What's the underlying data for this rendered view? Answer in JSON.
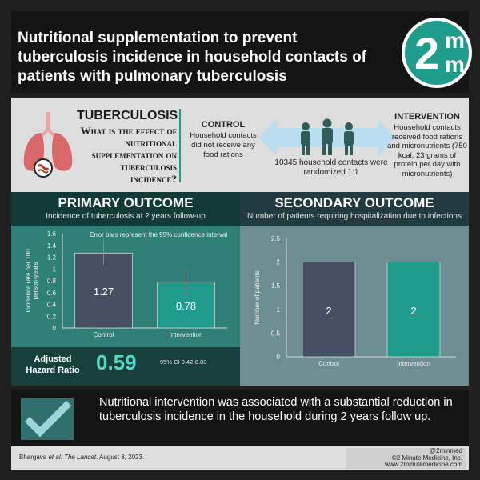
{
  "header": {
    "title": "Nutritional supplementation to prevent tuberculosis incidence in household contacts of patients with pulmonary tuberculosis",
    "logo": {
      "big": "2",
      "sm1": "m",
      "sm2": "m"
    }
  },
  "info": {
    "question_heading": "TUBERCULOSIS:",
    "question_body": "What is the effect of nutritional supplementation on tuberculosis incidence?",
    "control": {
      "heading": "CONTROL",
      "text": "Household contacts did not receive any food rations"
    },
    "randomized": "10345 household contacts were randomized 1:1",
    "intervention": {
      "heading": "INTERVENTION",
      "text": "Household contacts received food rations and micronutrients (750 kcal, 23 grams of protein per day with micronutrients)"
    }
  },
  "primary": {
    "title": "PRIMARY OUTCOME",
    "subtitle": "Incidence of tuberculosis at 2 years follow-up",
    "hr_label": "Adjusted Hazard Ratio",
    "hr_value": "0.59",
    "hr_ci": "95% CI 0.42-0.83"
  },
  "secondary": {
    "title": "SECONDARY OUTCOME",
    "subtitle": "Number of patients requiring hospitalization due to infections"
  },
  "conclusion": "Nutritional intervention was associated with a substantial reduction in tuberculosis incidence in the household during 2 years follow up.",
  "footer": {
    "citation_authors": "Bhargava",
    "citation_etal": "et al.",
    "citation_journal": "The Lancet",
    "citation_date": ". August 8, 2023.",
    "handle": "@2minmed",
    "copyright": "©2 Minute Medicine, Inc.",
    "website": "www.2minutemedicine.com"
  },
  "colors": {
    "teal": "#1f9c8c",
    "control_bar": "#454f64",
    "intervention_bar": "#1f9c8c",
    "hr_value": "#57d6c6"
  },
  "icons": [
    "lungs-icon",
    "people-icon",
    "checkmark-icon"
  ],
  "chart_data": [
    {
      "type": "bar",
      "categories": [
        "Control",
        "Intervention"
      ],
      "values": [
        1.27,
        0.78
      ],
      "data_labels": [
        "1.27",
        "0.78"
      ],
      "error_bars": [
        [
          1.08,
          1.5
        ],
        [
          0.55,
          1.02
        ]
      ],
      "ylabel": "Incidence rate per 100 person-years",
      "xlabel": "",
      "ylim": [
        0,
        1.6
      ],
      "yticks": [
        "0",
        "0.2",
        "0.4",
        "0.6",
        "0.8",
        "1",
        "1.2",
        "1.4",
        "1.6"
      ],
      "annotation": "Error bars represent the 95% confidence interval",
      "grid": false
    },
    {
      "type": "bar",
      "categories": [
        "Control",
        "Intervention"
      ],
      "values": [
        2,
        2
      ],
      "data_labels": [
        "2",
        "2"
      ],
      "ylabel": "Number of patients",
      "xlabel": "",
      "ylim": [
        0,
        2.5
      ],
      "yticks": [
        "0",
        "0.5",
        "1",
        "1.5",
        "2",
        "2.5"
      ],
      "grid": false
    }
  ]
}
